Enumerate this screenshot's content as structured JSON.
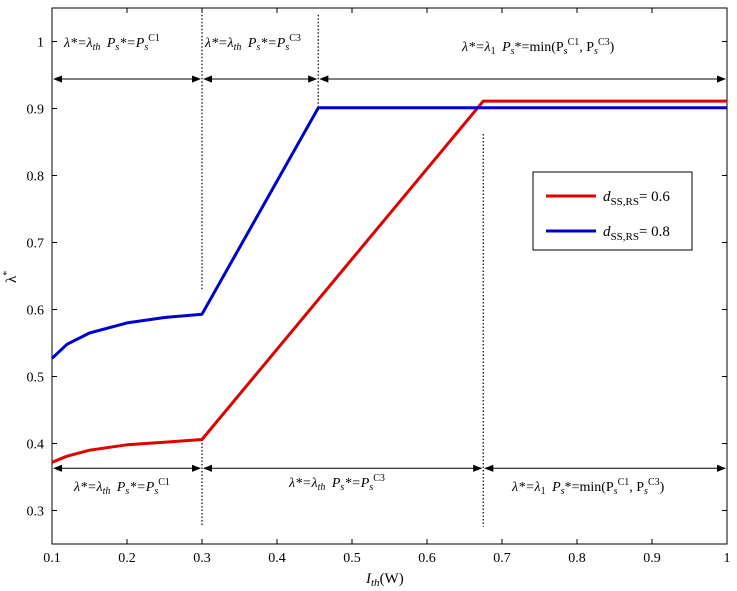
{
  "chart_data": {
    "type": "line",
    "title": "",
    "xlabel": "I_th(W)",
    "ylabel": "λ*",
    "xlim": [
      0.1,
      1.0
    ],
    "ylim": [
      0.25,
      1.05
    ],
    "x_ticks": [
      "0.1",
      "0.2",
      "0.3",
      "0.4",
      "0.5",
      "0.6",
      "0.7",
      "0.8",
      "0.9",
      "1"
    ],
    "y_ticks": [
      "0.3",
      "0.4",
      "0.5",
      "0.6",
      "0.7",
      "0.8",
      "0.9",
      "1"
    ],
    "grid": false,
    "legend_position": "right",
    "series": [
      {
        "name": "d_SS,RS = 0.6",
        "color": "#e00000",
        "x": [
          0.1,
          0.12,
          0.15,
          0.2,
          0.25,
          0.3,
          0.675,
          1.0
        ],
        "y": [
          0.372,
          0.381,
          0.39,
          0.398,
          0.402,
          0.406,
          0.911,
          0.911
        ]
      },
      {
        "name": "d_SS,RS = 0.8",
        "color": "#0000cc",
        "x": [
          0.1,
          0.12,
          0.15,
          0.2,
          0.25,
          0.3,
          0.455,
          1.0
        ],
        "y": [
          0.527,
          0.548,
          0.565,
          0.58,
          0.588,
          0.593,
          0.901,
          0.901
        ]
      }
    ],
    "dotted_vlines": [
      {
        "x": 0.3,
        "y_from": 0.627,
        "y_to": 1.04
      },
      {
        "x": 0.455,
        "y_from": 0.901,
        "y_to": 1.04
      },
      {
        "x": 0.3,
        "y_from": 0.278,
        "y_to": 0.406
      },
      {
        "x": 0.675,
        "y_from": 0.276,
        "y_to": 0.862
      }
    ],
    "arrow_spans": [
      {
        "y": 0.944,
        "x_from": 0.1,
        "x_to": 0.3
      },
      {
        "y": 0.944,
        "x_from": 0.3,
        "x_to": 0.455
      },
      {
        "y": 0.944,
        "x_from": 0.455,
        "x_to": 1.0
      },
      {
        "y": 0.363,
        "x_from": 0.1,
        "x_to": 0.3
      },
      {
        "y": 0.363,
        "x_from": 0.3,
        "x_to": 0.675
      },
      {
        "y": 0.363,
        "x_from": 0.675,
        "x_to": 1.0
      }
    ]
  },
  "annotations": {
    "top_1": {
      "lam": "λ*=λ",
      "sub": "th",
      "ps": "P",
      "ps_sub": "s",
      "eq": "*=P",
      "eq_sub": "s",
      "sup": "C1"
    },
    "top_2": {
      "lam": "λ*=λ",
      "sub": "th",
      "ps": "P",
      "ps_sub": "s",
      "eq": "*=P",
      "eq_sub": "s",
      "sup": "C3"
    },
    "top_3": {
      "lam": "λ*=λ",
      "sub": "1",
      "ps": "P",
      "ps_sub": "s",
      "eq": "*=min(P",
      "eq_sub": "s",
      "sup": "C1",
      "mid": ", P",
      "mid_sub": "s",
      "sup2": "C3",
      "close": ")"
    },
    "bottom_1": {
      "lam": "λ*=λ",
      "sub": "th",
      "ps": "P",
      "ps_sub": "s",
      "eq": "*=P",
      "eq_sub": "s",
      "sup": "C1"
    },
    "bottom_2": {
      "lam": "λ*=λ",
      "sub": "th",
      "ps": "P",
      "ps_sub": "s",
      "eq": "*=P",
      "eq_sub": "s",
      "sup": "C3"
    },
    "bottom_3": {
      "lam": "λ*=λ",
      "sub": "1",
      "ps": "P",
      "ps_sub": "s",
      "eq": "*=min(P",
      "eq_sub": "s",
      "sup": "C1",
      "mid": ", P",
      "mid_sub": "s",
      "sup2": "C3",
      "close": ")"
    }
  },
  "legend": {
    "entries": [
      {
        "d": "d",
        "sub": "SS,RS",
        "value": "= 0.6",
        "color": "#e00000"
      },
      {
        "d": "d",
        "sub": "SS,RS",
        "value": "= 0.8",
        "color": "#0000cc"
      }
    ]
  },
  "axis_labels": {
    "x_main": "I",
    "x_sub": "th",
    "x_unit": "(W)",
    "y_main": "λ",
    "y_sup": "*"
  }
}
